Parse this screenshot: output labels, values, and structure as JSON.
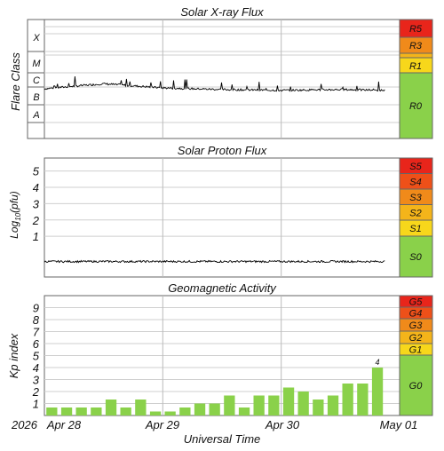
{
  "xray": {
    "title": "Solar X-ray Flux",
    "ylabel": "Flare Class",
    "class_labels": [
      "X",
      "M",
      "C",
      "B",
      "A"
    ],
    "scale_labels": [
      "R5",
      "R3",
      "R1",
      "R0"
    ],
    "scale_colors": [
      "#e8251b",
      "#f08a1a",
      "#f7d71b",
      "#8ad14a"
    ]
  },
  "proton": {
    "title": "Solar Proton Flux",
    "ylabel_main": "Log",
    "ylabel_sub": "10",
    "ylabel_unit": "(pfu)",
    "ticks": [
      "5",
      "4",
      "3",
      "2",
      "1"
    ],
    "scale_labels": [
      "S5",
      "S4",
      "S3",
      "S2",
      "S1",
      "S0"
    ],
    "scale_colors": [
      "#e8251b",
      "#ee5019",
      "#f08a1a",
      "#f4b41a",
      "#f7d71b",
      "#8ad14a"
    ]
  },
  "geo": {
    "title": "Geomagnetic Activity",
    "ylabel": "Kp index",
    "ticks": [
      "9",
      "8",
      "7",
      "6",
      "5",
      "4",
      "3",
      "2",
      "1"
    ],
    "scale_labels": [
      "G5",
      "G4",
      "G3",
      "G2",
      "G1",
      "G0"
    ],
    "scale_colors": [
      "#e8251b",
      "#ee5019",
      "#f08a1a",
      "#f4b41a",
      "#f7d71b",
      "#8ad14a"
    ],
    "last_label": "4"
  },
  "xaxis": {
    "year": "2026",
    "day_labels": [
      "Apr 28",
      "Apr 29",
      "Apr 30",
      "May 01"
    ],
    "title": "Universal Time"
  },
  "chart_data": [
    {
      "type": "area",
      "title": "Solar X-ray Flux",
      "ylabel": "Flare Class",
      "y_scale": "log",
      "y_categories": [
        "A",
        "B",
        "C",
        "M",
        "X"
      ],
      "x": [
        "2026-04-28 00:00",
        "2026-04-28 12:00",
        "2026-04-29 00:00",
        "2026-04-29 12:00",
        "2026-04-30 00:00",
        "2026-04-30 12:00",
        "2026-04-30 21:00"
      ],
      "flare_class_level": [
        2.6,
        2.9,
        2.65,
        2.55,
        2.5,
        2.55,
        2.5
      ]
    },
    {
      "type": "area",
      "title": "Solar Proton Flux",
      "ylabel": "Log10(pfu)",
      "ylim": [
        -1.5,
        5.8
      ],
      "x": [
        "2026-04-28 00:00",
        "2026-04-30 21:00"
      ],
      "values": [
        -0.55,
        -0.55
      ]
    },
    {
      "type": "bar",
      "title": "Geomagnetic Activity",
      "ylabel": "Kp index",
      "ylim": [
        0,
        10
      ],
      "interval_hours": 3,
      "start": "2026-04-28 00:00",
      "values": [
        0.67,
        0.67,
        0.67,
        0.67,
        1.33,
        0.67,
        1.33,
        0.33,
        0.33,
        0.67,
        1.0,
        1.0,
        1.67,
        0.67,
        1.67,
        1.67,
        2.33,
        2.0,
        1.33,
        1.67,
        2.67,
        2.67,
        4.0
      ]
    }
  ]
}
